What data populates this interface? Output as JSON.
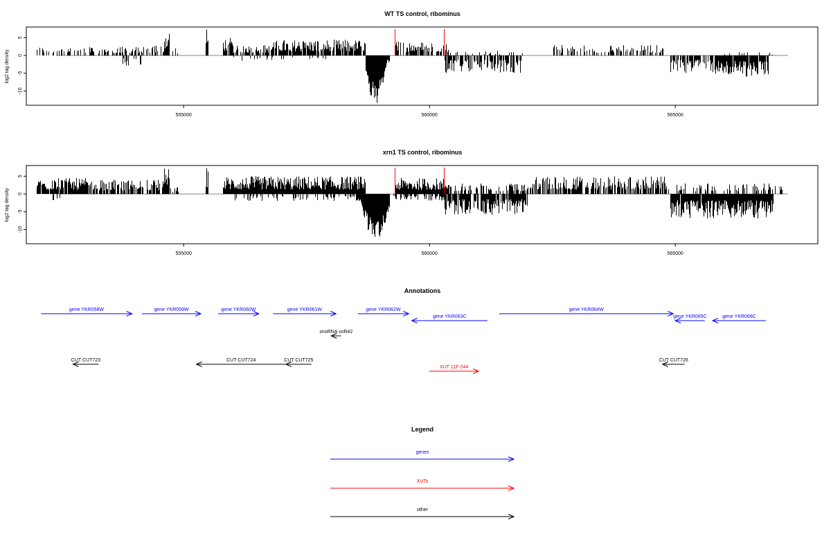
{
  "chart_data": [
    {
      "type": "bar",
      "title": "WT TS control, ribominus",
      "ylabel": "log2 tag density",
      "xlabel": "",
      "ylim": [
        -14,
        8
      ],
      "yticks": [
        5,
        0,
        -5,
        -10
      ],
      "xlim": [
        551800,
        567900
      ],
      "xticks": [
        555000,
        560000,
        565000
      ],
      "grid": false,
      "markers": [
        559300,
        560300
      ],
      "positive_segments": [
        {
          "start": 552000,
          "end": 553000,
          "density": 0.35,
          "max": 2.5
        },
        {
          "start": 553000,
          "end": 554300,
          "density": 0.5,
          "max": 2.5
        },
        {
          "start": 554300,
          "end": 554600,
          "density": 0.6,
          "max": 3
        },
        {
          "start": 554600,
          "end": 554720,
          "density": 1.0,
          "max": 7.5
        },
        {
          "start": 554720,
          "end": 554900,
          "density": 0.3,
          "max": 2
        },
        {
          "start": 555450,
          "end": 555500,
          "density": 1.0,
          "max": 7.5
        },
        {
          "start": 555800,
          "end": 556000,
          "density": 0.9,
          "max": 5
        },
        {
          "start": 556000,
          "end": 556800,
          "density": 0.6,
          "max": 3
        },
        {
          "start": 556800,
          "end": 558700,
          "density": 0.85,
          "max": 4.5
        },
        {
          "start": 559300,
          "end": 560400,
          "density": 0.6,
          "max": 4
        },
        {
          "start": 560400,
          "end": 561900,
          "density": 0.2,
          "max": 1.5
        },
        {
          "start": 562500,
          "end": 564800,
          "density": 0.45,
          "max": 3
        },
        {
          "start": 566000,
          "end": 567000,
          "density": 0.1,
          "max": 1
        }
      ],
      "negative_segments": [
        {
          "start": 553700,
          "end": 554200,
          "density": 0.15,
          "max": 3
        },
        {
          "start": 556000,
          "end": 558000,
          "density": 0.15,
          "max": 1.5
        },
        {
          "start": 558700,
          "end": 559200,
          "density": 1.0,
          "max": 14,
          "peak": 558900
        },
        {
          "start": 560300,
          "end": 561900,
          "density": 0.7,
          "max": 5
        },
        {
          "start": 564900,
          "end": 565800,
          "density": 0.7,
          "max": 5
        },
        {
          "start": 565800,
          "end": 566900,
          "density": 0.95,
          "max": 6
        }
      ]
    },
    {
      "type": "bar",
      "title": "xrn1 TS control, ribominus",
      "ylabel": "log2 tag density",
      "xlabel": "",
      "ylim": [
        -14,
        8
      ],
      "yticks": [
        5,
        0,
        -5,
        -10
      ],
      "xlim": [
        551800,
        567900
      ],
      "xticks": [
        555000,
        560000,
        565000
      ],
      "grid": false,
      "markers": [
        559300,
        560300
      ],
      "positive_segments": [
        {
          "start": 552000,
          "end": 553200,
          "density": 0.8,
          "max": 4.5
        },
        {
          "start": 553200,
          "end": 554600,
          "density": 0.75,
          "max": 4
        },
        {
          "start": 554600,
          "end": 554720,
          "density": 1.0,
          "max": 7.5
        },
        {
          "start": 554720,
          "end": 554900,
          "density": 0.4,
          "max": 2
        },
        {
          "start": 555450,
          "end": 555500,
          "density": 1.0,
          "max": 7.5
        },
        {
          "start": 555800,
          "end": 558700,
          "density": 1.0,
          "max": 5
        },
        {
          "start": 559300,
          "end": 560400,
          "density": 1.0,
          "max": 4.5
        },
        {
          "start": 560400,
          "end": 562000,
          "density": 0.45,
          "max": 3
        },
        {
          "start": 562000,
          "end": 564900,
          "density": 0.7,
          "max": 5
        },
        {
          "start": 565000,
          "end": 566600,
          "density": 0.3,
          "max": 3
        },
        {
          "start": 566600,
          "end": 567200,
          "density": 0.5,
          "max": 3
        }
      ],
      "negative_segments": [
        {
          "start": 552300,
          "end": 552500,
          "density": 0.3,
          "max": 2
        },
        {
          "start": 556000,
          "end": 558500,
          "density": 0.2,
          "max": 2
        },
        {
          "start": 558500,
          "end": 559200,
          "density": 1.0,
          "max": 13,
          "peak": 558900
        },
        {
          "start": 559200,
          "end": 560300,
          "density": 0.5,
          "max": 2
        },
        {
          "start": 560300,
          "end": 562000,
          "density": 0.8,
          "max": 6
        },
        {
          "start": 564900,
          "end": 565600,
          "density": 0.9,
          "max": 7
        },
        {
          "start": 565600,
          "end": 567000,
          "density": 1.0,
          "max": 7
        }
      ]
    }
  ],
  "annotations": {
    "title": "Annotations",
    "features": [
      {
        "label": "gene YKR058W",
        "start": 552100,
        "end": 553950,
        "strand": "+",
        "row": 0,
        "color": "#0000ff"
      },
      {
        "label": "gene YKR059W",
        "start": 554150,
        "end": 555350,
        "strand": "+",
        "row": 0,
        "color": "#0000ff"
      },
      {
        "label": "gene YKR060W",
        "start": 555700,
        "end": 556530,
        "strand": "+",
        "row": 0,
        "color": "#0000ff"
      },
      {
        "label": "gene YKR061W",
        "start": 556820,
        "end": 558100,
        "strand": "+",
        "row": 0,
        "color": "#0000ff"
      },
      {
        "label": "gene YKR062W",
        "start": 558540,
        "end": 559580,
        "strand": "+",
        "row": 0,
        "color": "#0000ff"
      },
      {
        "label": "gene YKR063C",
        "start": 559640,
        "end": 561180,
        "strand": "-",
        "row": 1,
        "color": "#0000ff"
      },
      {
        "label": "gene YKR064W",
        "start": 561420,
        "end": 564960,
        "strand": "+",
        "row": 0,
        "color": "#0000ff"
      },
      {
        "label": "gene YKR065C",
        "start": 565000,
        "end": 565600,
        "strand": "-",
        "row": 1,
        "color": "#0000ff"
      },
      {
        "label": "gene YKR066C",
        "start": 565760,
        "end": 566840,
        "strand": "-",
        "row": 1,
        "color": "#0000ff"
      },
      {
        "label": "snoRNA snR42",
        "start": 558000,
        "end": 558200,
        "strand": "-",
        "row": 2,
        "color": "#000000"
      },
      {
        "label": "CUT CUT723",
        "start": 552750,
        "end": 553270,
        "strand": "-",
        "row": 3,
        "color": "#000000"
      },
      {
        "label": "CUT CUT724",
        "start": 555260,
        "end": 557080,
        "strand": "-",
        "row": 3,
        "color": "#000000"
      },
      {
        "label": "CUT CUT725",
        "start": 557080,
        "end": 557600,
        "strand": "-",
        "row": 3,
        "color": "#000000"
      },
      {
        "label": "XUT 11F-244",
        "start": 560000,
        "end": 561000,
        "strand": "+",
        "row": 4,
        "color": "#ff0000"
      },
      {
        "label": "CUT CUT726",
        "start": 564740,
        "end": 565190,
        "strand": "-",
        "row": 3,
        "color": "#000000"
      }
    ]
  },
  "legend": {
    "title": "Legend",
    "items": [
      {
        "label": "genes",
        "color": "#0000ff"
      },
      {
        "label": "XUTs",
        "color": "#ff0000"
      },
      {
        "label": "other",
        "color": "#000000"
      }
    ]
  }
}
